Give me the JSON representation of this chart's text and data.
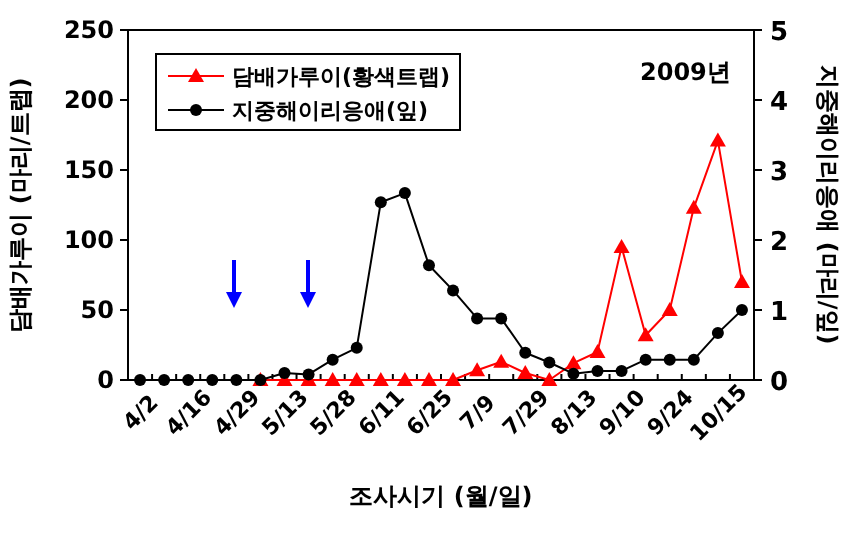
{
  "chart_data": {
    "type": "line",
    "xlabel": "조사시기 (월/일)",
    "ylabel": "담배가루이 (마리/트랩)",
    "y2label": "지중해이리응애 (마리/잎)",
    "annotations": [
      "2009년"
    ],
    "categories": [
      "4/2",
      null,
      "4/16",
      null,
      "4/29",
      null,
      "5/13",
      null,
      "5/28",
      null,
      "6/11",
      null,
      "6/25",
      null,
      "7/9",
      null,
      "7/29",
      null,
      "8/13",
      null,
      "9/10",
      null,
      "9/24",
      null,
      "10/15",
      null
    ],
    "ylim": [
      0,
      250
    ],
    "yticks": [
      0,
      50,
      100,
      150,
      200,
      250
    ],
    "y2lim": [
      0,
      5
    ],
    "y2ticks": [
      0,
      1,
      2,
      3,
      4,
      5
    ],
    "legend": "top left",
    "series": [
      {
        "name": "담배가루이(황색트랩)",
        "color": "#ff0000",
        "marker": "triangle",
        "values": [
          null,
          null,
          null,
          null,
          null,
          0,
          0,
          0,
          0,
          0,
          0,
          0,
          0,
          0,
          7,
          13,
          5,
          0,
          12,
          20,
          95,
          32,
          50,
          123,
          171,
          70
        ]
      },
      {
        "name": "지중해이리응애(잎)",
        "color": "#000000",
        "marker": "circle",
        "axis": "y2",
        "values": [
          0,
          0,
          0,
          0,
          0,
          0,
          0.1,
          0.08,
          0.29,
          0.46,
          2.54,
          2.67,
          1.64,
          1.28,
          0.88,
          0.88,
          0.39,
          0.25,
          0.09,
          0.13,
          0.13,
          0.29,
          0.29,
          0.29,
          0.67,
          1.0
        ]
      }
    ]
  }
}
